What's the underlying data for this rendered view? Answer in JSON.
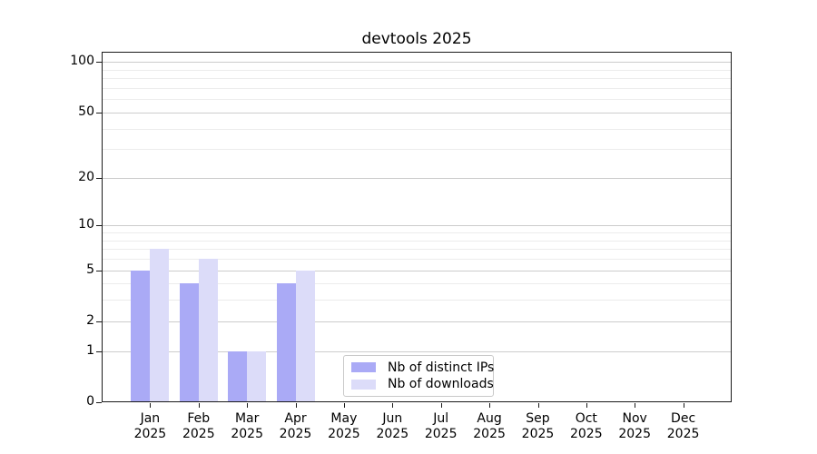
{
  "title": "devtools 2025",
  "chart_data": {
    "type": "bar",
    "title": "devtools 2025",
    "year_label": "2025",
    "categories": [
      "Jan",
      "Feb",
      "Mar",
      "Apr",
      "May",
      "Jun",
      "Jul",
      "Aug",
      "Sep",
      "Oct",
      "Nov",
      "Dec"
    ],
    "series": [
      {
        "name": "Nb of distinct IPs",
        "color": "#aaaaf6",
        "values": [
          5,
          4,
          1,
          4,
          0,
          0,
          0,
          0,
          0,
          0,
          0,
          0
        ]
      },
      {
        "name": "Nb of downloads",
        "color": "#dcdcf9",
        "values": [
          7,
          6,
          1,
          5,
          0,
          0,
          0,
          0,
          0,
          0,
          0,
          0
        ]
      }
    ],
    "y_axis": {
      "scale": "log1p",
      "tick_values": [
        100,
        50,
        20,
        10,
        5,
        2,
        1,
        0
      ],
      "tick_labels": [
        "100",
        "50",
        "20",
        "10",
        "5",
        "2",
        "1",
        "0"
      ],
      "minor_gridline_values": [
        3,
        4,
        6,
        7,
        8,
        9,
        30,
        40,
        60,
        70,
        80,
        90
      ],
      "max": 115
    },
    "grid": true,
    "legend_position": "lower center-left inside plot",
    "colors": {
      "major_grid": "#cccccc",
      "minor_grid": "#ececec",
      "spine": "#1a1a1a",
      "text": "#000000",
      "legend_border": "#c9c9c9",
      "background": "#ffffff"
    }
  }
}
